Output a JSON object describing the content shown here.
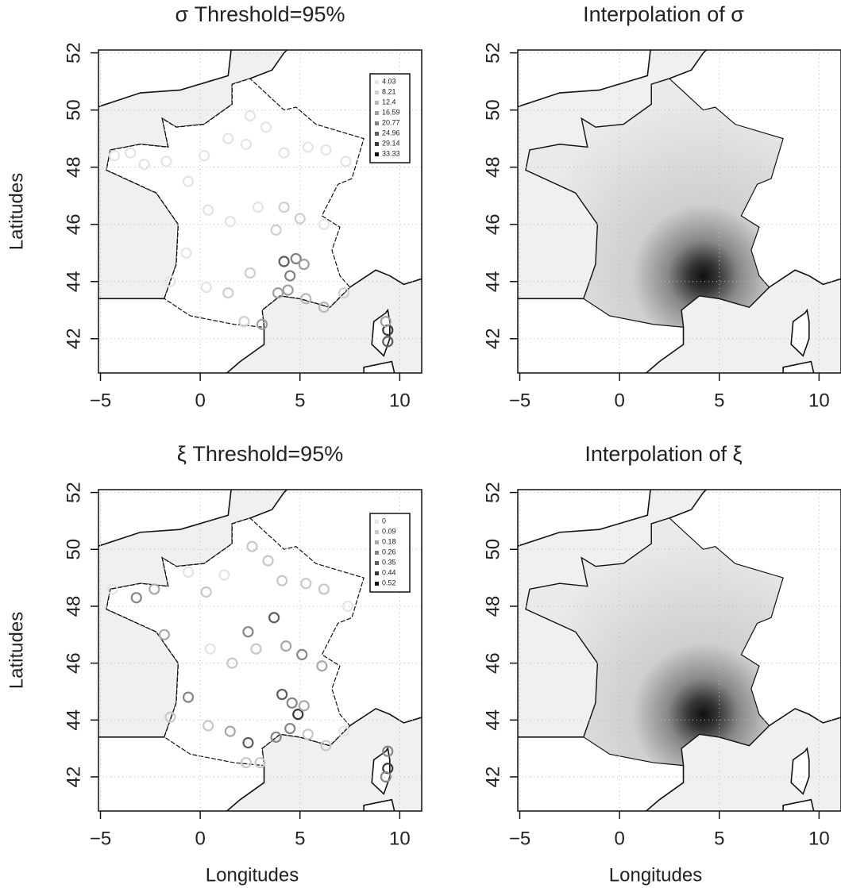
{
  "chart_data": [
    {
      "type": "scatter",
      "title": "σ Threshold=95%",
      "ylabel": "Latitudes",
      "xlim": [
        -5.1,
        11.1
      ],
      "ylim": [
        40.8,
        52.1
      ],
      "xticks": [
        {
          "value": -5,
          "label": "−5"
        },
        0,
        5,
        10
      ],
      "yticks": [
        42,
        44,
        46,
        48,
        50,
        52
      ],
      "grid": true,
      "x": [
        -4.3,
        -3.5,
        -2.8,
        -1.7,
        -0.6,
        0.2,
        1.4,
        2.3,
        2.5,
        3.3,
        4.2,
        5.4,
        6.3,
        7.3,
        0.4,
        1.5,
        2.9,
        3.8,
        4.2,
        5.0,
        6.2,
        -0.7,
        -1.5,
        0.3,
        1.4,
        2.2,
        3.1,
        4.2,
        4.5,
        4.8,
        5.2,
        4.4,
        5.3,
        6.2,
        7.2,
        9.4,
        9.4,
        9.3,
        3.9,
        2.5
      ],
      "y": [
        48.4,
        48.5,
        48.1,
        48.2,
        47.5,
        48.4,
        49.0,
        48.8,
        49.8,
        49.4,
        48.5,
        48.7,
        48.6,
        48.2,
        46.5,
        46.1,
        46.6,
        45.8,
        46.6,
        46.2,
        46.0,
        45.0,
        44.0,
        43.8,
        43.6,
        42.6,
        42.5,
        44.7,
        44.2,
        44.8,
        44.6,
        43.7,
        43.4,
        43.1,
        43.6,
        42.3,
        41.9,
        42.6,
        43.6,
        44.3
      ],
      "values": [
        6,
        5,
        5,
        6,
        5,
        6,
        5,
        7,
        5,
        6,
        7,
        6,
        7,
        8,
        6,
        7,
        8,
        9,
        10,
        9,
        8,
        6,
        7,
        8,
        9,
        10,
        17,
        25,
        21,
        22,
        18,
        19,
        13,
        14,
        12,
        30,
        25,
        18,
        20,
        9
      ],
      "legend": {
        "labels": [
          4.03,
          8.21,
          12.4,
          16.59,
          20.77,
          24.96,
          29.14,
          33.33
        ],
        "colors": [
          "#e4e4e4",
          "#cfcfcf",
          "#b8b8b8",
          "#9e9e9e",
          "#808080",
          "#5e5e5e",
          "#3a3a3a",
          "#111111"
        ]
      }
    },
    {
      "type": "map",
      "title": "Interpolation of σ",
      "xlim": [
        -5.1,
        11.1
      ],
      "ylim": [
        40.8,
        52.1
      ],
      "xticks": [
        {
          "value": -5,
          "label": "−5"
        },
        0,
        5,
        10
      ],
      "yticks": [
        42,
        44,
        46,
        48,
        50,
        52
      ],
      "grid": true
    },
    {
      "type": "scatter",
      "title": "ξ Threshold=95%",
      "ylabel": "Latitudes",
      "xlabel": "Longitudes",
      "xlim": [
        -5.1,
        11.1
      ],
      "ylim": [
        40.8,
        52.1
      ],
      "xticks": [
        {
          "value": -5,
          "label": "−5"
        },
        0,
        5,
        10
      ],
      "yticks": [
        42,
        44,
        46,
        48,
        50,
        52
      ],
      "grid": true,
      "x": [
        -4.4,
        -3.2,
        -2.3,
        -1.8,
        -0.6,
        0.3,
        1.2,
        2.4,
        2.6,
        3.4,
        4.1,
        5.3,
        6.2,
        7.4,
        0.5,
        1.6,
        2.8,
        3.7,
        4.3,
        5.1,
        6.1,
        -0.6,
        -1.5,
        0.4,
        1.5,
        2.3,
        3.0,
        4.1,
        4.6,
        4.9,
        5.2,
        4.5,
        5.4,
        6.3,
        7.2,
        9.4,
        9.3,
        9.4,
        3.8,
        2.4
      ],
      "y": [
        48.6,
        48.3,
        48.6,
        47.0,
        49.2,
        48.5,
        49.1,
        47.1,
        50.1,
        49.6,
        48.9,
        48.8,
        48.6,
        48.0,
        46.5,
        46.0,
        46.5,
        47.6,
        46.6,
        46.3,
        45.9,
        44.8,
        44.1,
        43.8,
        43.6,
        42.5,
        42.5,
        44.9,
        44.6,
        44.2,
        44.5,
        43.7,
        43.5,
        43.1,
        43.6,
        42.3,
        42.0,
        42.9,
        43.4,
        43.2
      ],
      "values": [
        0.08,
        0.3,
        0.22,
        0.2,
        0.05,
        0.1,
        0.08,
        0.3,
        0.1,
        0.15,
        0.1,
        0.09,
        0.12,
        0.06,
        0.05,
        0.1,
        0.12,
        0.35,
        0.2,
        0.3,
        0.2,
        0.28,
        0.1,
        0.15,
        0.2,
        0.1,
        0.1,
        0.4,
        0.3,
        0.45,
        0.25,
        0.3,
        0.15,
        0.1,
        0.05,
        0.48,
        0.3,
        0.28,
        0.3,
        0.35
      ],
      "legend": {
        "labels": [
          0,
          0.09,
          0.18,
          0.26,
          0.35,
          0.44,
          0.52
        ],
        "colors": [
          "#e4e4e4",
          "#c8c8c8",
          "#a8a8a8",
          "#868686",
          "#5e5e5e",
          "#383838",
          "#111111"
        ]
      }
    },
    {
      "type": "map",
      "title": "Interpolation of ξ",
      "xlabel": "Longitudes",
      "xlim": [
        -5.1,
        11.1
      ],
      "ylim": [
        40.8,
        52.1
      ],
      "xticks": [
        {
          "value": -5,
          "label": "−5"
        },
        0,
        5,
        10
      ],
      "yticks": [
        42,
        44,
        46,
        48,
        50,
        52
      ],
      "grid": true
    }
  ]
}
